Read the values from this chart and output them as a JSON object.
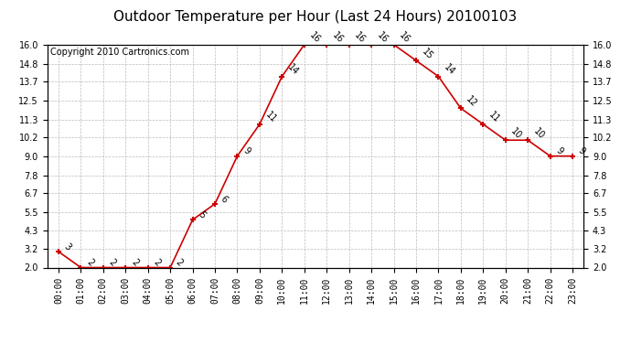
{
  "title": "Outdoor Temperature per Hour (Last 24 Hours) 20100103",
  "copyright": "Copyright 2010 Cartronics.com",
  "hours": [
    "00:00",
    "01:00",
    "02:00",
    "03:00",
    "04:00",
    "05:00",
    "06:00",
    "07:00",
    "08:00",
    "09:00",
    "10:00",
    "11:00",
    "12:00",
    "13:00",
    "14:00",
    "15:00",
    "16:00",
    "17:00",
    "18:00",
    "19:00",
    "20:00",
    "21:00",
    "22:00",
    "23:00"
  ],
  "values": [
    3,
    2,
    2,
    2,
    2,
    2,
    5,
    6,
    9,
    11,
    14,
    16,
    16,
    16,
    16,
    16,
    15,
    14,
    12,
    11,
    10,
    10,
    9,
    9
  ],
  "ylim": [
    2.0,
    16.0
  ],
  "yticks": [
    2.0,
    3.2,
    4.3,
    5.5,
    6.7,
    7.8,
    9.0,
    10.2,
    11.3,
    12.5,
    13.7,
    14.8,
    16.0
  ],
  "line_color": "#cc0000",
  "marker": "+",
  "marker_size": 5,
  "marker_linewidth": 1.5,
  "background_color": "#ffffff",
  "grid_color": "#bbbbbb",
  "title_fontsize": 11,
  "copyright_fontsize": 7,
  "label_fontsize": 7,
  "tick_fontsize": 7,
  "annotation_rotation": -45
}
